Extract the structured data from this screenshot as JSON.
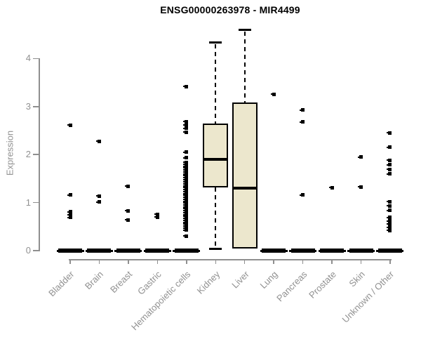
{
  "title": "ENSG00000263978 - MIR4499",
  "chart_data": {
    "type": "boxplot",
    "title": "ENSG00000263978 - MIR4499",
    "ylabel": "Expression",
    "xlabel": "",
    "ylim": [
      0,
      4.65
    ],
    "yticks": [
      0,
      1,
      2,
      3,
      4
    ],
    "grid": false,
    "legend": "none",
    "categories": [
      "Bladder",
      "Brain",
      "Breast",
      "Gastric",
      "Hematopoietic cells",
      "Kidney",
      "Liver",
      "Lung",
      "Pancreas",
      "Prostate",
      "Skin",
      "Unknown / Other"
    ],
    "series": [
      {
        "category": "Bladder",
        "collapsed": true,
        "q1": 0,
        "median": 0,
        "q3": 0,
        "whisker_low": 0,
        "whisker_high": 0,
        "outliers": [
          2.61,
          1.16,
          0.81,
          0.74,
          0.69
        ]
      },
      {
        "category": "Brain",
        "collapsed": true,
        "q1": 0,
        "median": 0,
        "q3": 0,
        "whisker_low": 0,
        "whisker_high": 0,
        "outliers": [
          2.28,
          1.14,
          1.01
        ]
      },
      {
        "category": "Breast",
        "collapsed": true,
        "q1": 0,
        "median": 0,
        "q3": 0,
        "whisker_low": 0,
        "whisker_high": 0,
        "outliers": [
          1.34,
          0.83,
          0.64
        ]
      },
      {
        "category": "Gastric",
        "collapsed": true,
        "q1": 0,
        "median": 0,
        "q3": 0,
        "whisker_low": 0,
        "whisker_high": 0,
        "outliers": [
          0.76,
          0.7
        ]
      },
      {
        "category": "Hematopoietic cells",
        "collapsed": true,
        "q1": 0,
        "median": 0,
        "q3": 0,
        "whisker_low": 0,
        "whisker_high": 0,
        "outliers": [
          3.42,
          2.69,
          2.62,
          2.55,
          2.47,
          2.05,
          1.93,
          1.84,
          1.8,
          1.76,
          1.72,
          1.68,
          1.64,
          1.6,
          1.56,
          1.52,
          1.48,
          1.43,
          1.39,
          1.35,
          1.31,
          1.27,
          1.23,
          1.19,
          1.15,
          1.11,
          1.07,
          1.03,
          0.99,
          0.95,
          0.91,
          0.87,
          0.83,
          0.79,
          0.75,
          0.71,
          0.67,
          0.63,
          0.59,
          0.55,
          0.51,
          0.47,
          0.43,
          0.3
        ]
      },
      {
        "category": "Kidney",
        "collapsed": false,
        "q1": 1.32,
        "median": 1.9,
        "q3": 2.65,
        "whisker_low": 0.03,
        "whisker_high": 4.34,
        "outliers": []
      },
      {
        "category": "Liver",
        "collapsed": false,
        "q1": 0.04,
        "median": 1.3,
        "q3": 3.09,
        "whisker_low": 0.04,
        "whisker_high": 4.6,
        "outliers": []
      },
      {
        "category": "Lung",
        "collapsed": true,
        "q1": 0,
        "median": 0,
        "q3": 0,
        "whisker_low": 0,
        "whisker_high": 0,
        "outliers": [
          3.26
        ]
      },
      {
        "category": "Pancreas",
        "collapsed": true,
        "q1": 0,
        "median": 0,
        "q3": 0,
        "whisker_low": 0,
        "whisker_high": 0,
        "outliers": [
          2.93,
          2.68,
          1.16
        ]
      },
      {
        "category": "Prostate",
        "collapsed": true,
        "q1": 0,
        "median": 0,
        "q3": 0,
        "whisker_low": 0,
        "whisker_high": 0,
        "outliers": [
          1.31
        ]
      },
      {
        "category": "Skin",
        "collapsed": true,
        "q1": 0,
        "median": 0,
        "q3": 0,
        "whisker_low": 0,
        "whisker_high": 0,
        "outliers": [
          1.95,
          1.33
        ]
      },
      {
        "category": "Unknown / Other",
        "collapsed": true,
        "q1": 0,
        "median": 0,
        "q3": 0,
        "whisker_low": 0,
        "whisker_high": 0,
        "outliers": [
          2.45,
          2.15,
          1.88,
          1.79,
          1.69,
          1.6,
          1.02,
          0.93,
          0.84,
          0.69,
          0.62,
          0.55,
          0.48,
          0.42
        ]
      }
    ],
    "colors": {
      "box_fill": "#ece7cd",
      "box_border": "#000000",
      "median": "#000000",
      "outlier": "#000000",
      "axis": "#8f8f8f",
      "tick_label": "#919191",
      "title": "#000000",
      "background": "#ffffff"
    }
  }
}
